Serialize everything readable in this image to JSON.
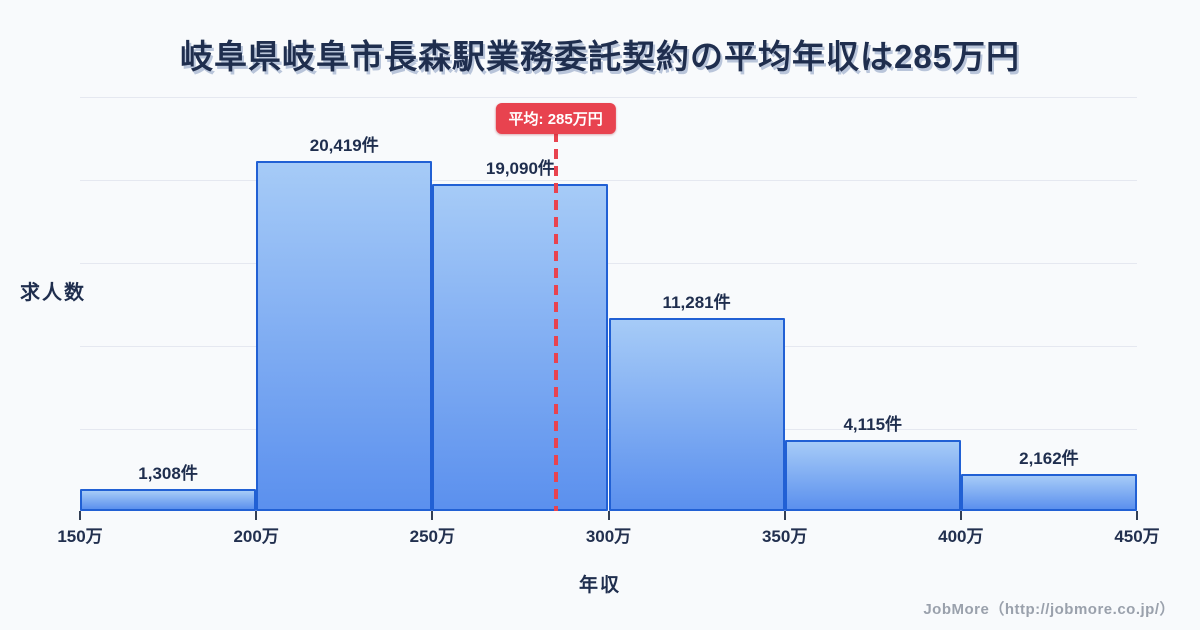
{
  "title": "岐阜県岐阜市長森駅業務委託契約の平均年収は285万円",
  "chart_data": {
    "type": "bar",
    "subtype": "histogram",
    "title": "岐阜県岐阜市長森駅業務委託契約の平均年収は285万円",
    "xlabel": "年収",
    "ylabel": "求人数",
    "x_unit": "万円",
    "y_unit": "件",
    "x_range": [
      150,
      450
    ],
    "bin_edges": [
      150,
      200,
      250,
      300,
      350,
      400,
      450
    ],
    "bin_edge_labels": [
      "150万",
      "200万",
      "250万",
      "300万",
      "350万",
      "400万",
      "450万"
    ],
    "values": [
      1308,
      20419,
      19090,
      11281,
      4115,
      2162
    ],
    "value_labels": [
      "1,308件",
      "20,419件",
      "19,090件",
      "11,281件",
      "4,115件",
      "2,162件"
    ],
    "average": {
      "value": 285,
      "label": "平均: 285万円"
    },
    "grid": "horizontal",
    "legend": "none"
  },
  "footer": {
    "credit": "JobMore（http://jobmore.co.jp/）"
  },
  "colors": {
    "background": "#f8fafc",
    "title_text": "#1f2e4e",
    "bar_fill_top": "#a6cbf7",
    "bar_fill_bottom": "#5b90ee",
    "bar_border": "#2160d4",
    "average_line": "#e8434f",
    "badge_background": "#e8434f",
    "badge_text": "#ffffff",
    "gridline": "#e5e8f0",
    "axis_label_text": "#22304f",
    "footer_text": "#9aa1ac"
  }
}
